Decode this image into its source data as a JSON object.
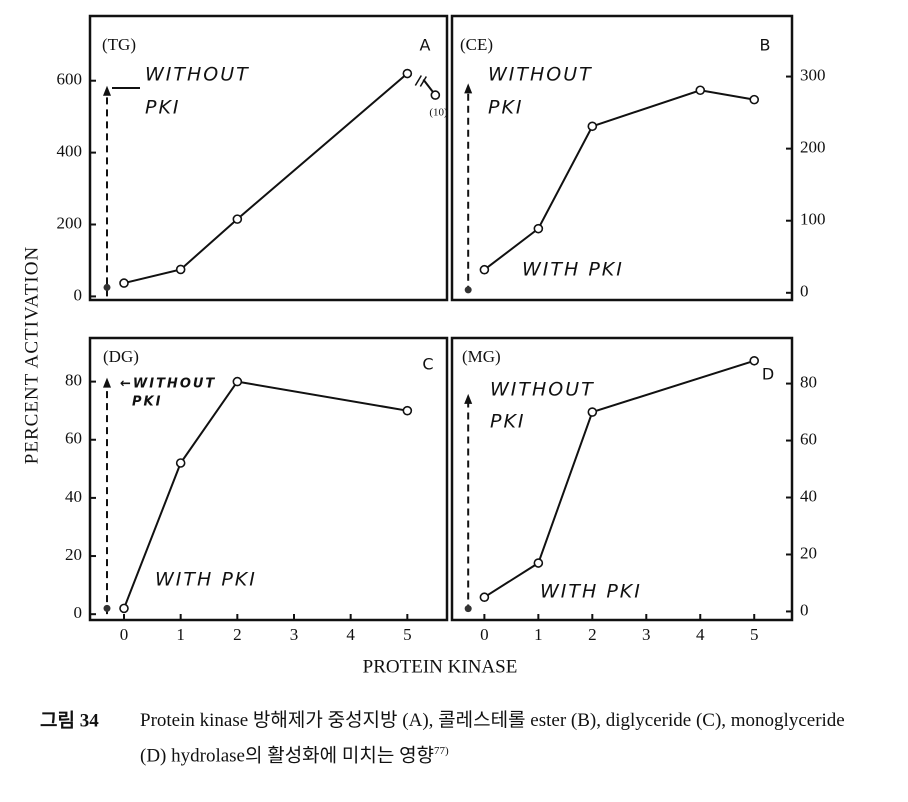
{
  "y_label": "PERCENT ACTIVATION",
  "x_label": "PROTEIN KINASE",
  "caption": {
    "label": "그림 34",
    "text": "Protein kinase 방해제가 중성지방 (A), 콜레스테롤 ester (B), diglyceride (C), monoglyceride (D) hydrolase의 활성화에 미치는 영향",
    "ref": "77)"
  },
  "chart_data": [
    {
      "type": "line",
      "tag": "(TG)",
      "letter": "A",
      "x": [
        0,
        1,
        2,
        5
      ],
      "values": [
        37,
        75,
        215,
        620
      ],
      "xlim": [
        -0.6,
        5.7
      ],
      "ylim": [
        -10,
        780
      ],
      "yticks": [
        0,
        200,
        400,
        600
      ],
      "y_axis_side": "left",
      "without_pki": {
        "label": [
          "WITHOUT",
          "PKI"
        ],
        "value": 575
      },
      "with_pki": {
        "value": 25
      },
      "break_point": {
        "label": "(10)",
        "value": 560
      }
    },
    {
      "type": "line",
      "tag": "(CE)",
      "letter": "B",
      "x": [
        0,
        1,
        2,
        4,
        5
      ],
      "values": [
        32,
        89,
        231,
        281,
        268
      ],
      "xlim": [
        -0.6,
        5.7
      ],
      "ylim": [
        -10,
        384
      ],
      "yticks": [
        0,
        100,
        200,
        300
      ],
      "y_axis_side": "right",
      "without_pki": {
        "label": [
          "WITHOUT",
          "PKI"
        ],
        "value": 285
      },
      "with_pki": {
        "value": 4,
        "label": "WITH PKI"
      }
    },
    {
      "type": "line",
      "tag": "(DG)",
      "letter": "C",
      "x": [
        0,
        1,
        2,
        5
      ],
      "values": [
        2,
        52,
        80,
        70
      ],
      "xlim": [
        -0.6,
        5.7
      ],
      "xticks": [
        0,
        1,
        2,
        3,
        4,
        5
      ],
      "ylim": [
        -2,
        95
      ],
      "yticks": [
        0,
        20,
        40,
        60,
        80
      ],
      "y_axis_side": "left",
      "without_pki": {
        "label": [
          "←WITHOUT",
          "PKI"
        ],
        "value": 80
      },
      "with_pki": {
        "value": 2,
        "label": "WITH PKI"
      }
    },
    {
      "type": "line",
      "tag": "(MG)",
      "letter": "D",
      "x": [
        0,
        1,
        2,
        5
      ],
      "values": [
        5,
        17,
        70,
        88
      ],
      "xlim": [
        -0.6,
        5.7
      ],
      "xticks": [
        0,
        1,
        2,
        3,
        4,
        5
      ],
      "ylim": [
        -3,
        96
      ],
      "yticks": [
        0,
        20,
        40,
        60,
        80
      ],
      "y_axis_side": "right",
      "without_pki": {
        "label": [
          "WITHOUT",
          "PKI"
        ],
        "value": 75
      },
      "with_pki": {
        "value": 1,
        "label": "WITH PKI"
      }
    }
  ]
}
